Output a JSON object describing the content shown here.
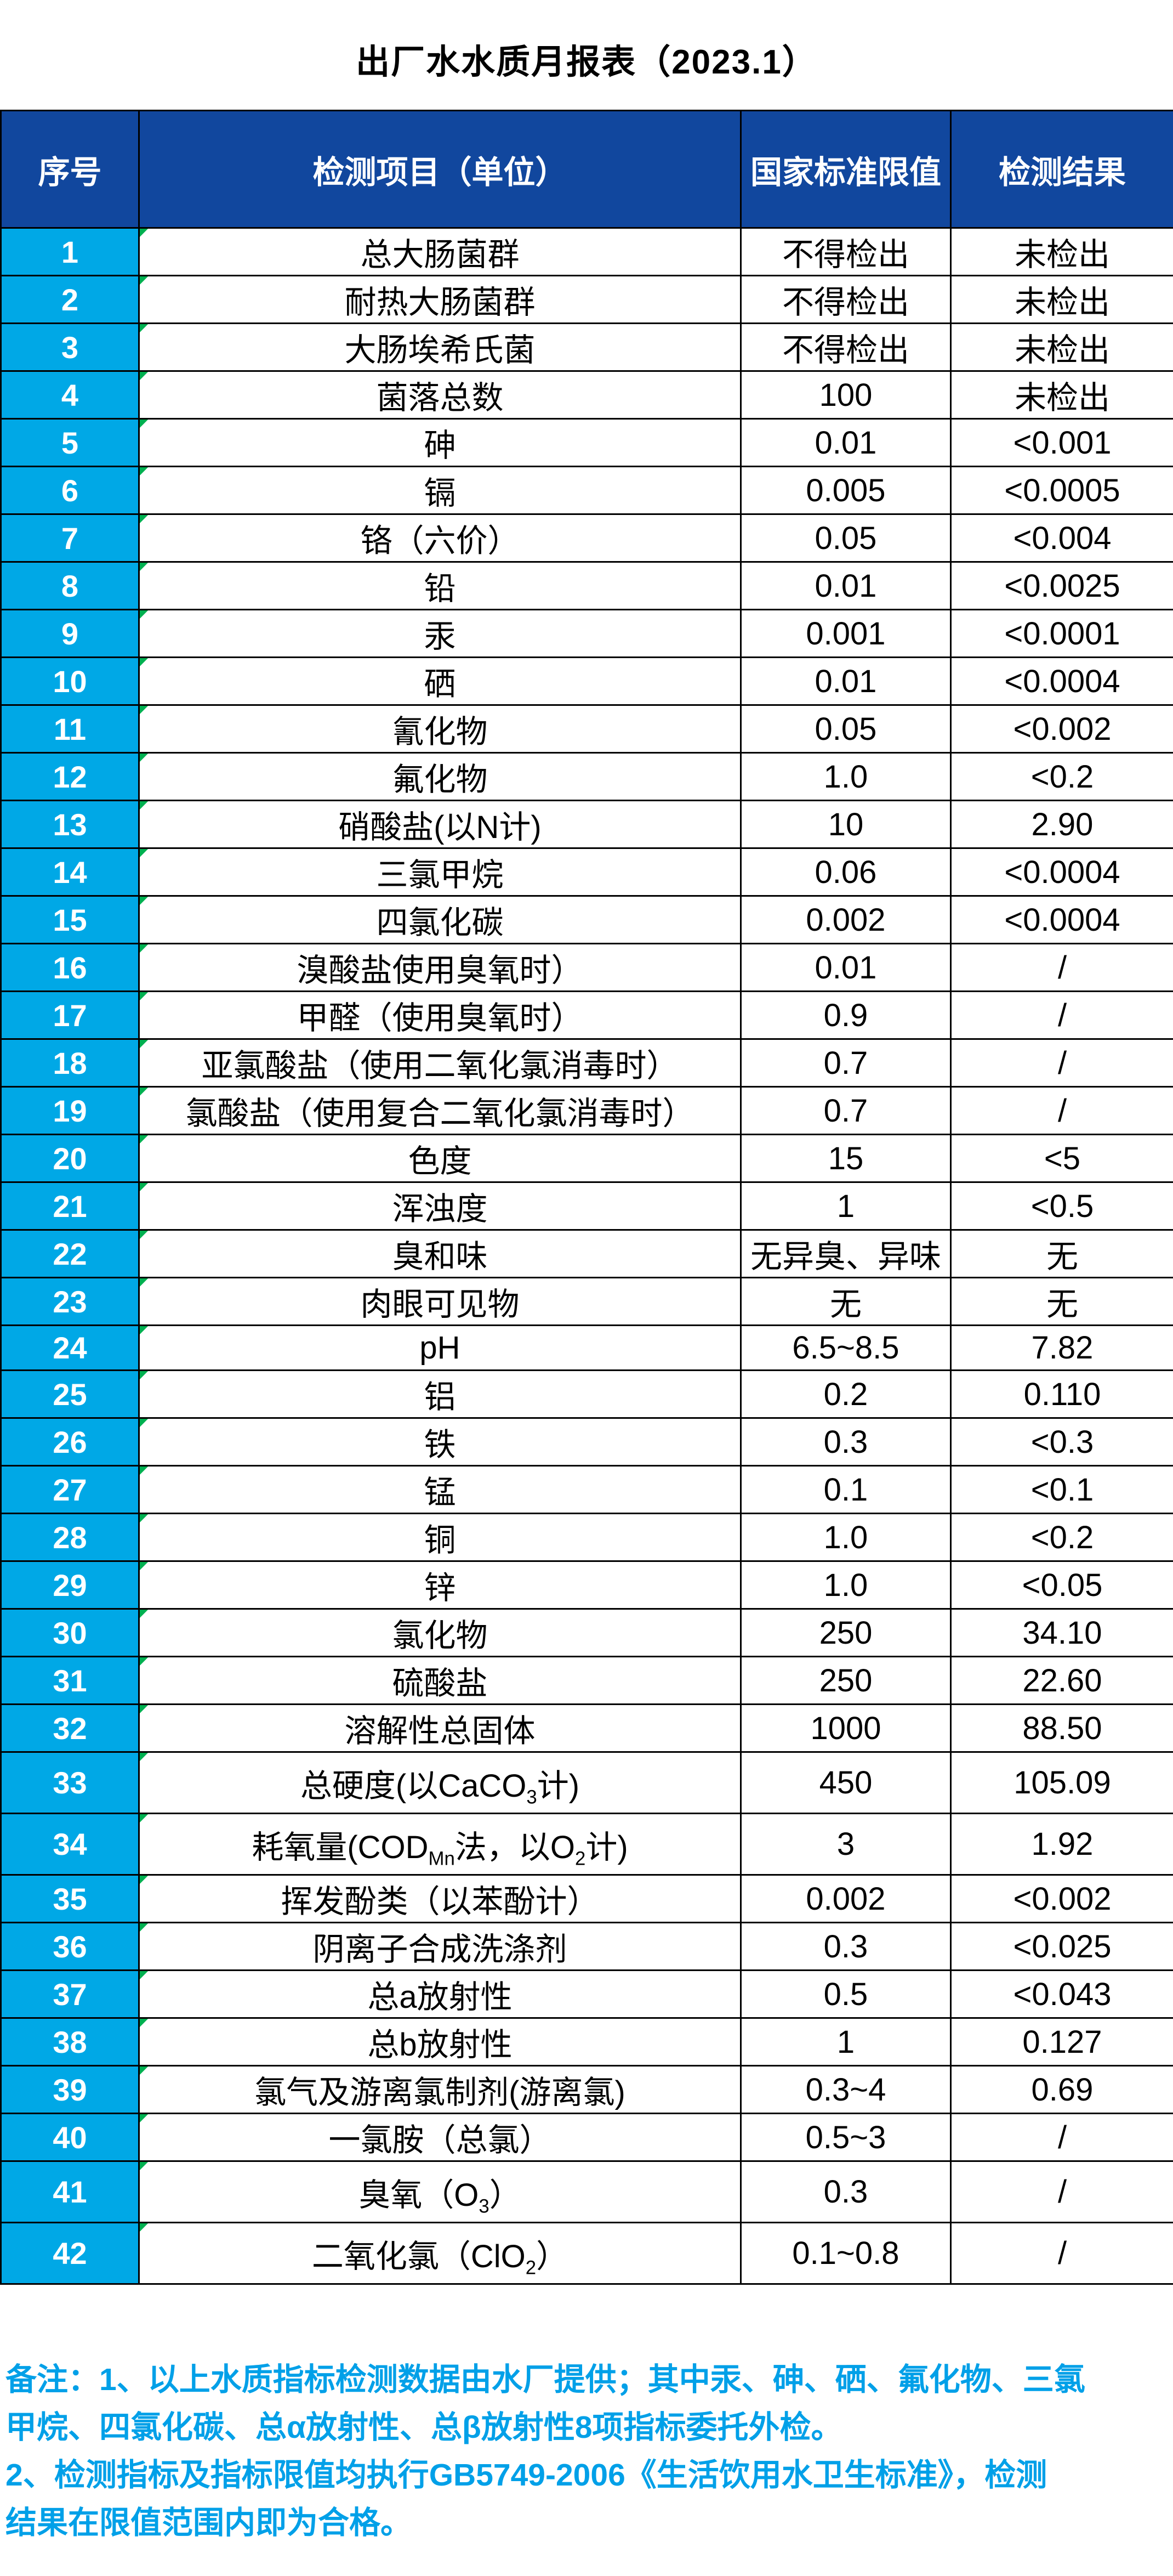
{
  "title": "出厂水水质月报表（2023.1）",
  "colors": {
    "header_bg": "#11479E",
    "index_bg": "#00A8E6",
    "notes_text": "#00A0E8",
    "flag": "#00B050",
    "border": "#000000",
    "header_text": "#FFFFFF",
    "cell_text": "#000000"
  },
  "table": {
    "headers": [
      "序号",
      "检测项目（单位）",
      "国家标准限值",
      "检测结果"
    ],
    "rows": [
      {
        "no": "1",
        "item": "总大肠菌群",
        "limit": "不得检出",
        "result": "未检出"
      },
      {
        "no": "2",
        "item": "耐热大肠菌群",
        "limit": "不得检出",
        "result": "未检出"
      },
      {
        "no": "3",
        "item": "大肠埃希氏菌",
        "limit": "不得检出",
        "result": "未检出"
      },
      {
        "no": "4",
        "item": "菌落总数",
        "limit": "100",
        "result": "未检出"
      },
      {
        "no": "5",
        "item": "砷",
        "limit": "0.01",
        "result": "<0.001"
      },
      {
        "no": "6",
        "item": "镉",
        "limit": "0.005",
        "result": "<0.0005"
      },
      {
        "no": "7",
        "item": "铬（六价）",
        "limit": "0.05",
        "result": "<0.004"
      },
      {
        "no": "8",
        "item": "铅",
        "limit": "0.01",
        "result": "<0.0025"
      },
      {
        "no": "9",
        "item": "汞",
        "limit": "0.001",
        "result": "<0.0001"
      },
      {
        "no": "10",
        "item": "硒",
        "limit": "0.01",
        "result": "<0.0004"
      },
      {
        "no": "11",
        "item": "氰化物",
        "limit": "0.05",
        "result": "<0.002"
      },
      {
        "no": "12",
        "item": "氟化物",
        "limit": "1.0",
        "result": "<0.2"
      },
      {
        "no": "13",
        "item": "硝酸盐(以N计)",
        "limit": "10",
        "result": "2.90"
      },
      {
        "no": "14",
        "item": "三氯甲烷",
        "limit": "0.06",
        "result": "<0.0004"
      },
      {
        "no": "15",
        "item": "四氯化碳",
        "limit": "0.002",
        "result": "<0.0004"
      },
      {
        "no": "16",
        "item": "溴酸盐使用臭氧时）",
        "limit": "0.01",
        "result": "/"
      },
      {
        "no": "17",
        "item": "甲醛（使用臭氧时）",
        "limit": "0.9",
        "result": "/"
      },
      {
        "no": "18",
        "item": "亚氯酸盐（使用二氧化氯消毒时）",
        "limit": "0.7",
        "result": "/"
      },
      {
        "no": "19",
        "item": "氯酸盐（使用复合二氧化氯消毒时）",
        "limit": "0.7",
        "result": "/"
      },
      {
        "no": "20",
        "item": "色度",
        "limit": "15",
        "result": "<5"
      },
      {
        "no": "21",
        "item": "浑浊度",
        "limit": "1",
        "result": "<0.5"
      },
      {
        "no": "22",
        "item": "臭和味",
        "limit": "无异臭、异味",
        "result": "无"
      },
      {
        "no": "23",
        "item": "肉眼可见物",
        "limit": "无",
        "result": "无"
      },
      {
        "no": "24",
        "item": "pH",
        "limit": "6.5~8.5",
        "result": "7.82"
      },
      {
        "no": "25",
        "item": "铝",
        "limit": "0.2",
        "result": "0.110"
      },
      {
        "no": "26",
        "item": "铁",
        "limit": "0.3",
        "result": "<0.3"
      },
      {
        "no": "27",
        "item": "锰",
        "limit": "0.1",
        "result": "<0.1"
      },
      {
        "no": "28",
        "item": "铜",
        "limit": "1.0",
        "result": "<0.2"
      },
      {
        "no": "29",
        "item": "锌",
        "limit": "1.0",
        "result": "<0.05"
      },
      {
        "no": "30",
        "item": "氯化物",
        "limit": "250",
        "result": "34.10"
      },
      {
        "no": "31",
        "item": "硫酸盐",
        "limit": "250",
        "result": "22.60"
      },
      {
        "no": "32",
        "item": "溶解性总固体",
        "limit": "1000",
        "result": "88.50"
      },
      {
        "no": "33",
        "item": "总硬度(以CaCO3计)",
        "item_parts": [
          {
            "t": "总硬度(以CaCO"
          },
          {
            "t": "3",
            "s": 1
          },
          {
            "t": "计)"
          }
        ],
        "limit": "450",
        "result": "105.09",
        "tall": true
      },
      {
        "no": "34",
        "item": "耗氧量(CODMn法，以O2计)",
        "item_parts": [
          {
            "t": "耗氧量(COD"
          },
          {
            "t": "Mn",
            "s": 1
          },
          {
            "t": "法，以O"
          },
          {
            "t": "2",
            "s": 1
          },
          {
            "t": "计)"
          }
        ],
        "limit": "3",
        "result": "1.92",
        "tall": true
      },
      {
        "no": "35",
        "item": "挥发酚类（以苯酚计）",
        "limit": "0.002",
        "result": "<0.002"
      },
      {
        "no": "36",
        "item": "阴离子合成洗涤剂",
        "limit": "0.3",
        "result": "<0.025"
      },
      {
        "no": "37",
        "item": "总a放射性",
        "limit": "0.5",
        "result": "<0.043"
      },
      {
        "no": "38",
        "item": "总b放射性",
        "limit": "1",
        "result": "0.127"
      },
      {
        "no": "39",
        "item": "氯气及游离氯制剂(游离氯)",
        "limit": "0.3~4",
        "result": "0.69"
      },
      {
        "no": "40",
        "item": "一氯胺（总氯）",
        "limit": "0.5~3",
        "result": "/"
      },
      {
        "no": "41",
        "item": "臭氧（O3）",
        "item_parts": [
          {
            "t": "臭氧（O"
          },
          {
            "t": "3",
            "s": 1
          },
          {
            "t": "）"
          }
        ],
        "limit": "0.3",
        "result": "/",
        "tall": true
      },
      {
        "no": "42",
        "item": "二氧化氯（ClO2）",
        "item_parts": [
          {
            "t": "二氧化氯（ClO"
          },
          {
            "t": "2",
            "s": 1
          },
          {
            "t": "）"
          }
        ],
        "limit": "0.1~0.8",
        "result": "/",
        "tall": true
      }
    ]
  },
  "notes": {
    "lines": [
      "备注：1、以上水质指标检测数据由水厂提供；其中汞、砷、硒、氟化物、三氯",
      "甲烷、四氯化碳、总α放射性、总β放射性8项指标委托外检。",
      "2、检测指标及指标限值均执行GB5749-2006《生活饮用水卫生标准》，检测",
      "结果在限值范围内即为合格。"
    ]
  }
}
